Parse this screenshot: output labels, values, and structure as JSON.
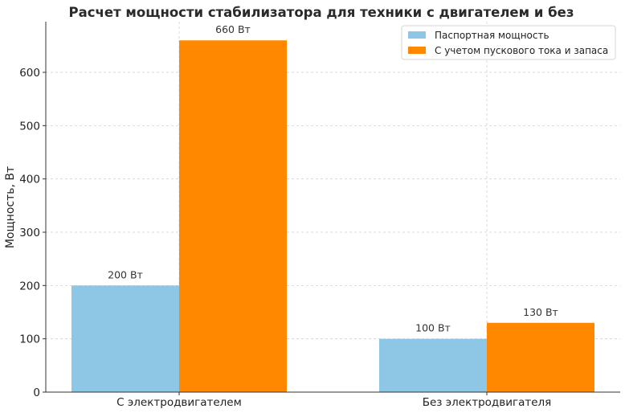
{
  "chart_data": {
    "type": "bar",
    "title": "Расчет мощности стабилизатора для техники с двигателем и без",
    "xlabel": "",
    "ylabel": "Мощность, Вт",
    "categories": [
      "С электродвигателем",
      "Без электродвигателя"
    ],
    "series": [
      {
        "name": "Паспортная мощность",
        "values": [
          200,
          100
        ],
        "labels": [
          "200 Вт",
          "100 Вт"
        ],
        "color": "#8ec6e5"
      },
      {
        "name": "С учетом пускового тока и запаса",
        "values": [
          660,
          130
        ],
        "labels": [
          "660 Вт",
          "130 Вт"
        ],
        "color": "#ff8800"
      }
    ],
    "ylim": [
      0,
      695
    ],
    "yticks": [
      0,
      100,
      200,
      300,
      400,
      500,
      600
    ],
    "grid": true,
    "legend_position": "top-right"
  }
}
